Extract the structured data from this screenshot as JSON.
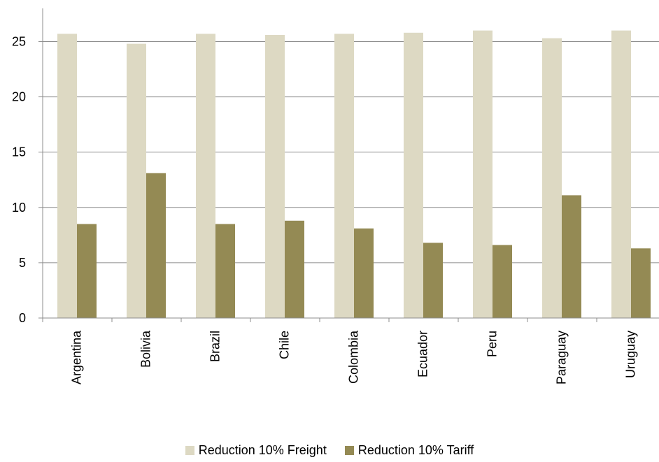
{
  "chart_data": {
    "type": "bar",
    "categories": [
      "Argentina",
      "Bolivia",
      "Brazil",
      "Chile",
      "Colombia",
      "Ecuador",
      "Peru",
      "Paraguay",
      "Uruguay"
    ],
    "series": [
      {
        "name": "Reduction 10% Freight",
        "color": "#ddd9c3",
        "values": [
          25.7,
          24.8,
          25.7,
          25.6,
          25.7,
          25.8,
          26.0,
          25.3,
          26.0
        ]
      },
      {
        "name": "Reduction 10% Tariff",
        "color": "#948a54",
        "values": [
          8.5,
          13.1,
          8.5,
          8.8,
          8.1,
          6.8,
          6.6,
          11.1,
          6.3
        ]
      }
    ],
    "yticks": [
      "0",
      "5",
      "10",
      "15",
      "20",
      "25"
    ],
    "ylim": [
      0,
      28
    ],
    "grid": true,
    "legend_position": "bottom",
    "title": "",
    "xlabel": "",
    "ylabel": ""
  }
}
